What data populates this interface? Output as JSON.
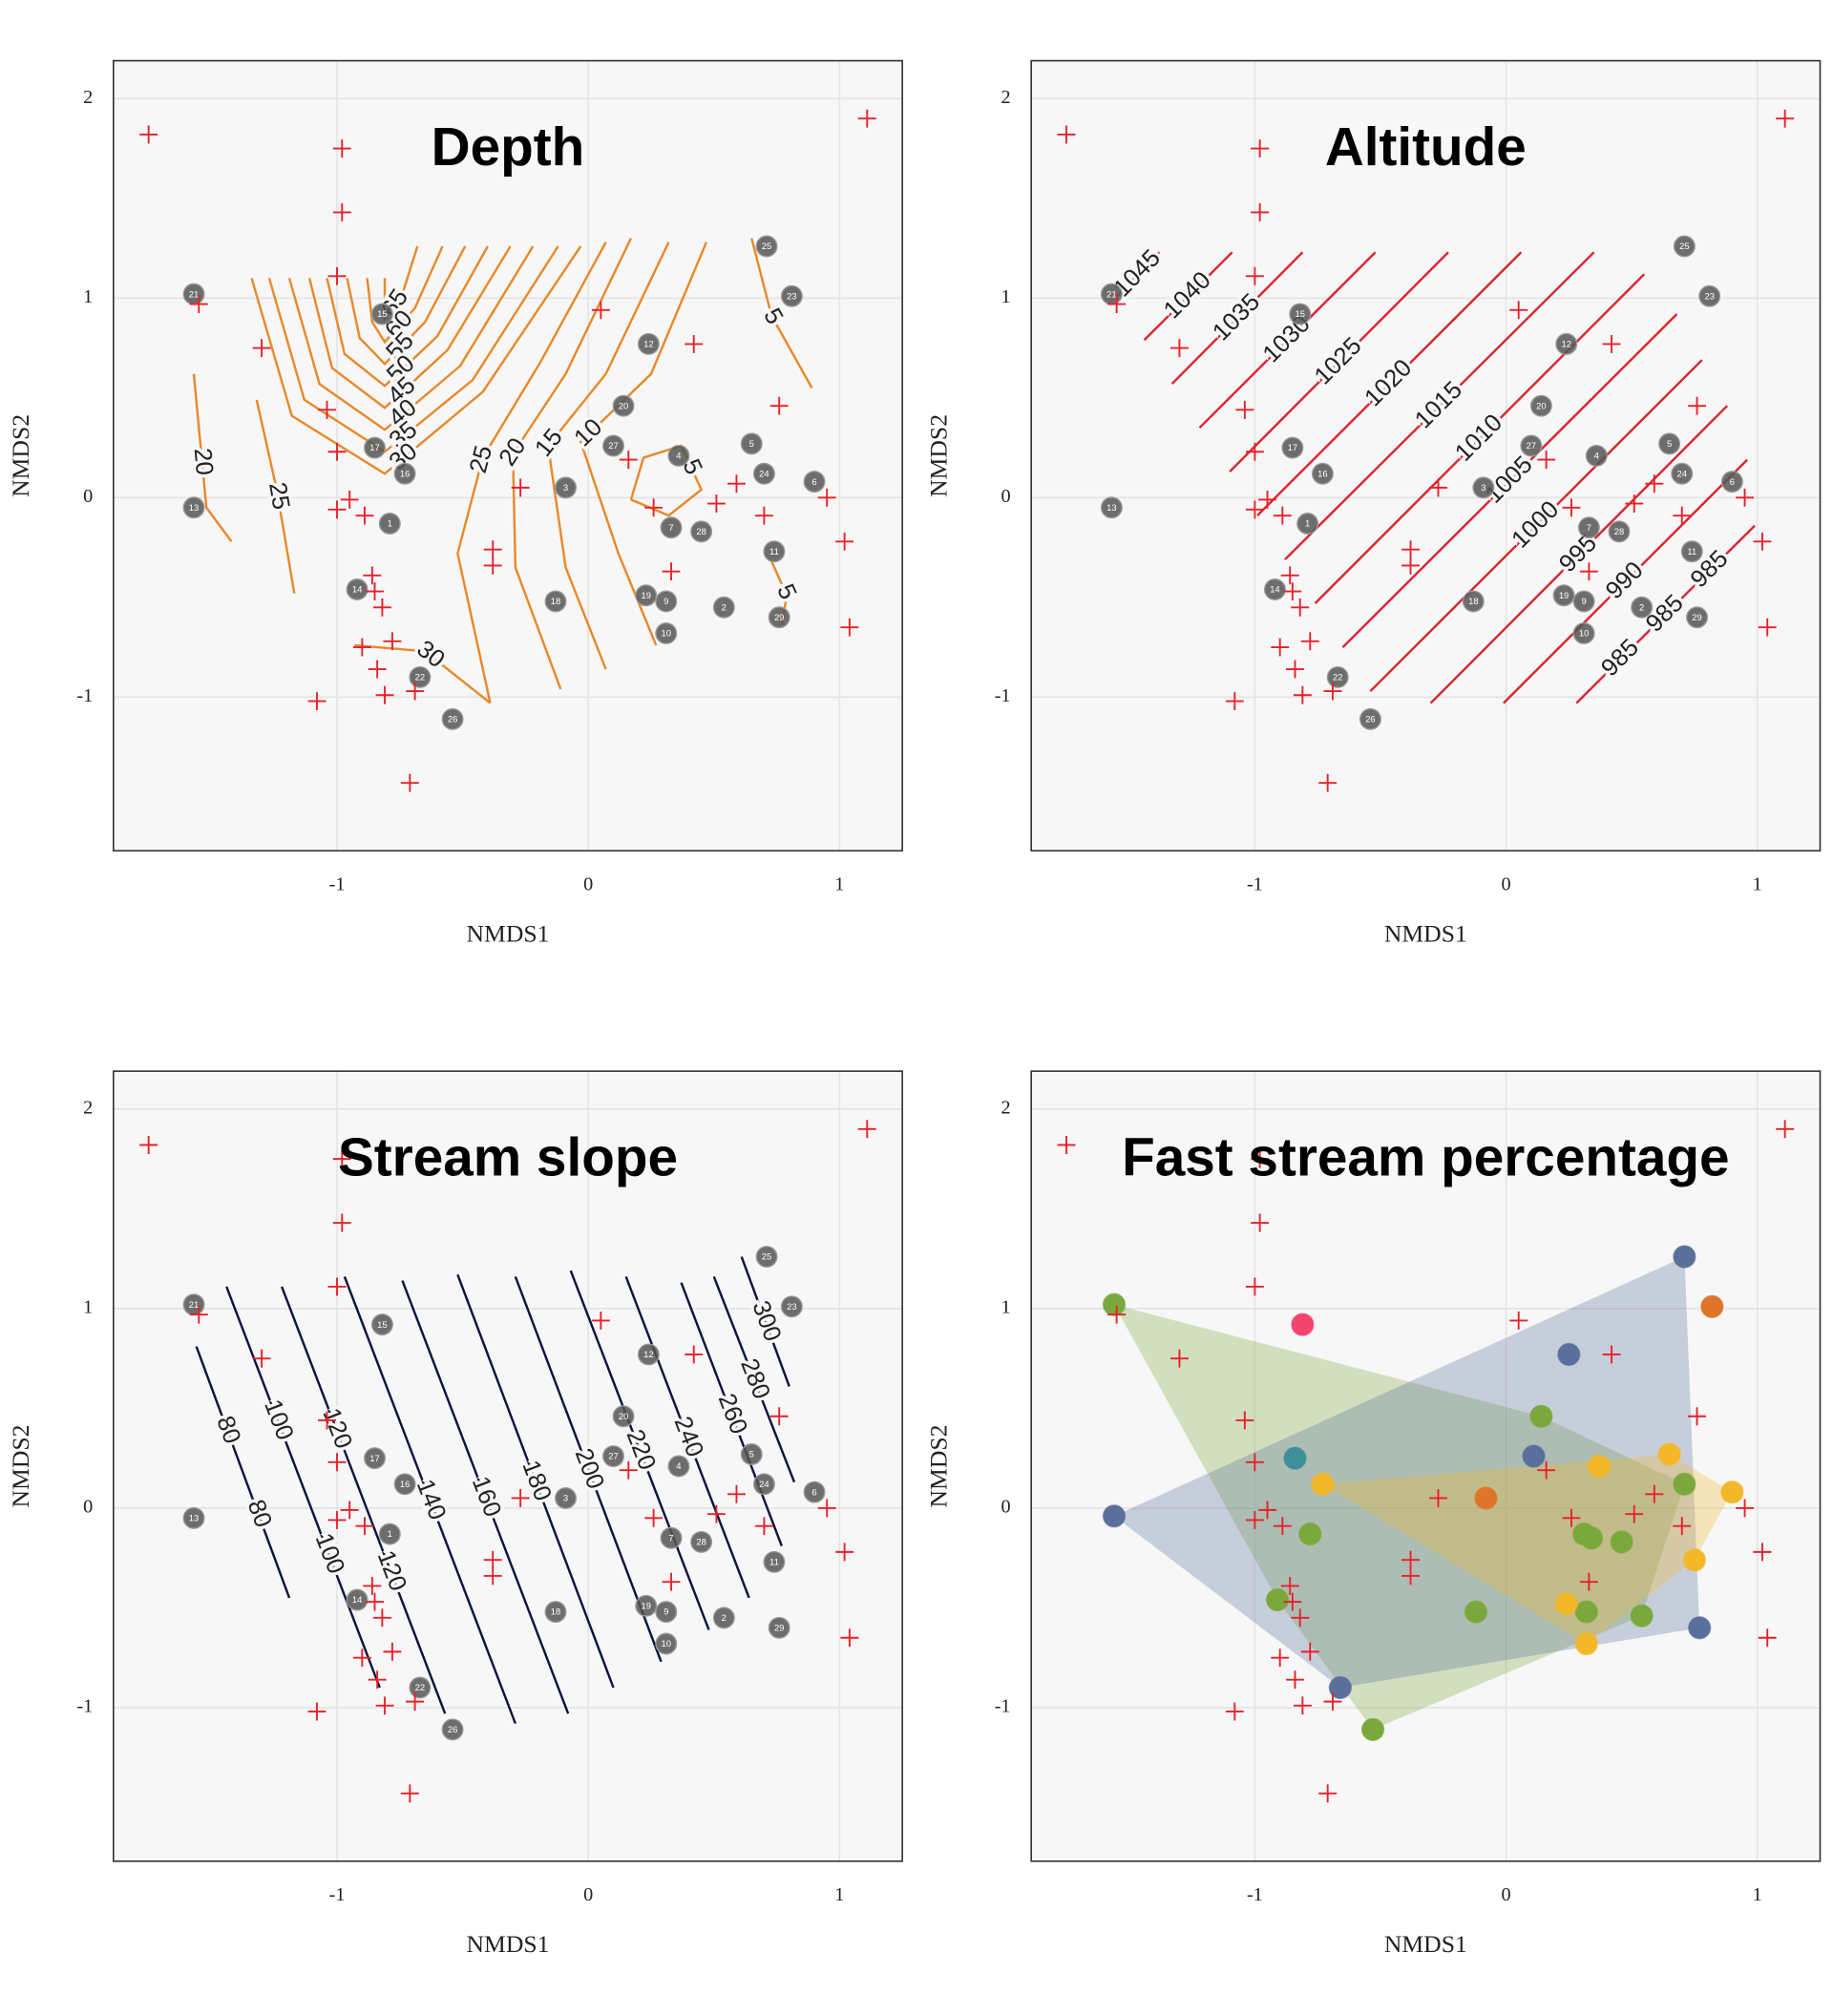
{
  "chart_data": [
    {
      "type": "scatter",
      "title": "Depth",
      "x_label": "NMDS1",
      "y_label": "NMDS2",
      "xlim": [
        -1.89,
        1.25
      ],
      "ylim": [
        -1.77,
        2.19
      ],
      "xticks": [
        -1,
        0,
        1
      ],
      "yticks": [
        -1,
        0,
        1,
        2
      ],
      "grid": true,
      "sites": {
        "color": "#555555",
        "labels": [
          "21",
          "13",
          "15",
          "12",
          "25",
          "23",
          "20",
          "27",
          "4",
          "5",
          "24",
          "6",
          "17",
          "16",
          "1",
          "3",
          "7",
          "28",
          "11",
          "14",
          "18",
          "19",
          "9",
          "2",
          "29",
          "10",
          "22",
          "26"
        ],
        "x": [
          -1.57,
          -1.57,
          -0.82,
          0.24,
          0.71,
          0.81,
          0.14,
          0.1,
          0.36,
          0.65,
          0.7,
          0.9,
          -0.85,
          -0.73,
          -0.79,
          -0.09,
          0.33,
          0.45,
          0.74,
          -0.92,
          -0.13,
          0.23,
          0.31,
          0.54,
          0.76,
          0.31,
          -0.67,
          -0.54
        ],
        "y": [
          1.02,
          -0.05,
          0.92,
          0.77,
          1.26,
          1.01,
          0.46,
          0.26,
          0.21,
          0.27,
          0.12,
          0.08,
          0.25,
          0.12,
          -0.13,
          0.05,
          -0.15,
          -0.17,
          -0.27,
          -0.46,
          -0.52,
          -0.49,
          -0.52,
          -0.55,
          -0.6,
          -0.68,
          -0.9,
          -1.11
        ]
      },
      "species": {
        "color": "#e8202a",
        "x": [
          -1.75,
          1.11,
          -0.98,
          -0.98,
          -1.0,
          -1.55,
          -1.3,
          0.05,
          0.42,
          0.76,
          -1.04,
          -1.0,
          0.16,
          -0.27,
          0.59,
          0.95,
          0.51,
          0.26,
          -0.95,
          -1.0,
          -0.89,
          0.7,
          1.02,
          -0.38,
          -0.38,
          0.33,
          -0.86,
          -0.85,
          -0.82,
          -0.78,
          -0.9,
          -0.84,
          -0.69,
          -0.81,
          -1.08,
          1.04,
          -0.71
        ],
        "y": [
          1.82,
          1.9,
          1.75,
          1.43,
          1.11,
          0.97,
          0.75,
          0.94,
          0.77,
          0.46,
          0.44,
          0.23,
          0.19,
          0.05,
          0.07,
          0,
          -0.03,
          -0.05,
          -0.01,
          -0.06,
          -0.09,
          -0.09,
          -0.22,
          -0.26,
          -0.34,
          -0.37,
          -0.39,
          -0.47,
          -0.55,
          -0.72,
          -0.75,
          -0.86,
          -0.97,
          -0.99,
          -1.02,
          -0.65,
          -1.43
        ]
      },
      "contours": {
        "color": "#e8892b",
        "lines": [
          {
            "labels": [
              65
            ],
            "x": [
              -0.81,
              -0.81,
              -0.81,
              -0.74,
              -0.68
            ],
            "y": [
              1.1,
              0.95,
              0.89,
              1.02,
              1.26
            ]
          },
          {
            "labels": [
              60
            ],
            "x": [
              -0.88,
              -0.86,
              -0.81,
              -0.69,
              -0.58
            ],
            "y": [
              1.1,
              0.88,
              0.78,
              0.95,
              1.26
            ]
          },
          {
            "labels": [
              55
            ],
            "x": [
              -0.96,
              -0.91,
              -0.81,
              -0.65,
              -0.49
            ],
            "y": [
              1.1,
              0.8,
              0.67,
              0.88,
              1.26
            ]
          },
          {
            "labels": [
              50
            ],
            "x": [
              -1.04,
              -0.97,
              -0.81,
              -0.6,
              -0.4
            ],
            "y": [
              1.1,
              0.72,
              0.56,
              0.81,
              1.26
            ]
          },
          {
            "labels": [
              45
            ],
            "x": [
              -1.11,
              -1.02,
              -0.81,
              -0.56,
              -0.31
            ],
            "y": [
              1.1,
              0.65,
              0.45,
              0.74,
              1.26
            ]
          },
          {
            "labels": [
              40
            ],
            "x": [
              -1.19,
              -1.07,
              -0.81,
              -0.51,
              -0.22
            ],
            "y": [
              1.1,
              0.57,
              0.34,
              0.66,
              1.26
            ]
          },
          {
            "labels": [
              35
            ],
            "x": [
              -1.27,
              -1.13,
              -0.81,
              -0.46,
              -0.12
            ],
            "y": [
              1.1,
              0.49,
              0.23,
              0.59,
              1.26
            ]
          },
          {
            "labels": [
              30,
              30
            ],
            "x": [
              -1.34,
              -1.18,
              -0.81,
              -0.42,
              -0.03,
              null,
              -0.93,
              -0.65,
              -0.39
            ],
            "y": [
              1.1,
              0.41,
              0.12,
              0.53,
              1.26,
              null,
              -0.74,
              -0.77,
              -1.03
            ]
          },
          {
            "labels": [
              25,
              25
            ],
            "x": [
              0.07,
              -0.19,
              -0.42,
              -0.52,
              -0.39,
              null,
              -1.32,
              -1.24,
              -1.17
            ],
            "y": [
              1.28,
              0.68,
              0.2,
              -0.28,
              -1.03,
              null,
              0.49,
              0.04,
              -0.48
            ]
          },
          {
            "labels": [
              20,
              20
            ],
            "x": [
              0.17,
              -0.09,
              -0.3,
              -0.29,
              -0.11,
              null,
              -1.57,
              -1.52,
              -1.42
            ],
            "y": [
              1.3,
              0.62,
              0.22,
              -0.35,
              -0.96,
              null,
              0.62,
              -0.05,
              -0.22
            ]
          },
          {
            "labels": [
              15
            ],
            "x": [
              0.32,
              0.07,
              -0.16,
              -0.09,
              0.07
            ],
            "y": [
              1.28,
              0.62,
              0.26,
              -0.35,
              -0.86
            ]
          },
          {
            "labels": [
              10
            ],
            "x": [
              0.47,
              0.25,
              -0.03,
              0.12,
              0.27
            ],
            "y": [
              1.28,
              0.62,
              0.28,
              -0.28,
              -0.74
            ]
          },
          {
            "labels": [
              5,
              5,
              5
            ],
            "x": [
              0.65,
              0.73,
              0.89,
              null,
              0.17,
              0.22,
              0.37,
              0.45,
              0.32,
              0.17,
              null,
              0.73,
              0.79,
              0.77
            ],
            "y": [
              1.3,
              0.91,
              0.55,
              null,
              -0.01,
              0.2,
              0.26,
              0.04,
              -0.09,
              -0.01,
              null,
              -0.32,
              -0.49,
              -0.64
            ]
          }
        ]
      }
    },
    {
      "type": "scatter",
      "title": "Altitude",
      "x_label": "NMDS1",
      "y_label": "NMDS2",
      "xlim": [
        -1.89,
        1.25
      ],
      "ylim": [
        -1.77,
        2.19
      ],
      "xticks": [
        -1,
        0,
        1
      ],
      "yticks": [
        -1,
        0,
        1,
        2
      ],
      "grid": true,
      "contours": {
        "color": "#d7282f",
        "lines": [
          {
            "labels": [
              1045
            ],
            "x": [
              -1.55,
              -1.38
            ],
            "y": [
              1.01,
              1.23
            ]
          },
          {
            "labels": [
              1040
            ],
            "x": [
              -1.44,
              -1.09
            ],
            "y": [
              0.79,
              1.23
            ]
          },
          {
            "labels": [
              1035
            ],
            "x": [
              -1.33,
              -0.81
            ],
            "y": [
              0.57,
              1.23
            ]
          },
          {
            "labels": [
              1030
            ],
            "x": [
              -1.22,
              -0.52
            ],
            "y": [
              0.35,
              1.23
            ]
          },
          {
            "labels": [
              1025
            ],
            "x": [
              -1.1,
              -0.23
            ],
            "y": [
              0.13,
              1.23
            ]
          },
          {
            "labels": [
              1020
            ],
            "x": [
              -0.99,
              0.06
            ],
            "y": [
              -0.09,
              1.23
            ]
          },
          {
            "labels": [
              1015
            ],
            "x": [
              -0.88,
              0.35
            ],
            "y": [
              -0.31,
              1.23
            ]
          },
          {
            "labels": [
              1010
            ],
            "x": [
              -0.76,
              0.55
            ],
            "y": [
              -0.53,
              1.12
            ]
          },
          {
            "labels": [
              1005
            ],
            "x": [
              -0.65,
              0.68
            ],
            "y": [
              -0.75,
              0.92
            ]
          },
          {
            "labels": [
              1000
            ],
            "x": [
              -0.54,
              0.78
            ],
            "y": [
              -0.97,
              0.69
            ]
          },
          {
            "labels": [
              995
            ],
            "x": [
              -0.3,
              0.88
            ],
            "y": [
              -1.03,
              0.46
            ]
          },
          {
            "labels": [
              990
            ],
            "x": [
              -0.01,
              0.96
            ],
            "y": [
              -1.03,
              0.19
            ]
          },
          {
            "labels": [
              985,
              985,
              985
            ],
            "x": [
              0.28,
              0.99
            ],
            "y": [
              -1.03,
              -0.14
            ]
          }
        ]
      }
    },
    {
      "type": "scatter",
      "title": "Stream slope",
      "x_label": "NMDS1",
      "y_label": "NMDS2",
      "xlim": [
        -1.89,
        1.25
      ],
      "ylim": [
        -1.77,
        2.19
      ],
      "xticks": [
        -1,
        0,
        1
      ],
      "yticks": [
        -1,
        0,
        1,
        2
      ],
      "grid": true,
      "contours": {
        "color": "#0d1440",
        "lines": [
          {
            "labels": [
              80,
              80
            ],
            "x": [
              -1.56,
              -1.19
            ],
            "y": [
              0.81,
              -0.45
            ]
          },
          {
            "labels": [
              100,
              100
            ],
            "x": [
              -1.44,
              -0.83
            ],
            "y": [
              1.11,
              -0.9
            ]
          },
          {
            "labels": [
              120,
              120
            ],
            "x": [
              -1.22,
              -0.57
            ],
            "y": [
              1.11,
              -1.03
            ]
          },
          {
            "labels": [
              140
            ],
            "x": [
              -0.97,
              -0.29
            ],
            "y": [
              1.16,
              -1.08
            ]
          },
          {
            "labels": [
              160
            ],
            "x": [
              -0.74,
              -0.08
            ],
            "y": [
              1.14,
              -1.03
            ]
          },
          {
            "labels": [
              180
            ],
            "x": [
              -0.52,
              0.1
            ],
            "y": [
              1.17,
              -0.9
            ]
          },
          {
            "labels": [
              200
            ],
            "x": [
              -0.29,
              0.29
            ],
            "y": [
              1.16,
              -0.77
            ]
          },
          {
            "labels": [
              220
            ],
            "x": [
              -0.07,
              0.48
            ],
            "y": [
              1.19,
              -0.61
            ]
          },
          {
            "labels": [
              240
            ],
            "x": [
              0.15,
              0.64
            ],
            "y": [
              1.16,
              -0.45
            ]
          },
          {
            "labels": [
              260
            ],
            "x": [
              0.37,
              0.77
            ],
            "y": [
              1.13,
              -0.19
            ]
          },
          {
            "labels": [
              280
            ],
            "x": [
              0.5,
              0.82
            ],
            "y": [
              1.16,
              0.13
            ]
          },
          {
            "labels": [
              300
            ],
            "x": [
              0.61,
              0.8
            ],
            "y": [
              1.26,
              0.61
            ]
          }
        ]
      }
    },
    {
      "type": "scatter",
      "title": "Fast stream percentage",
      "x_label": "NMDS1",
      "y_label": "NMDS2",
      "xlim": [
        -1.89,
        1.25
      ],
      "ylim": [
        -1.77,
        2.19
      ],
      "xticks": [
        -1,
        0,
        1
      ],
      "yticks": [
        -1,
        0,
        1,
        2
      ],
      "grid": true,
      "hull": true,
      "groups": [
        {
          "color": "#7ba83c",
          "x": [
            -1.56,
            0.14,
            0.71,
            -0.78,
            0.31,
            0.34,
            0.46,
            -0.91,
            -0.12,
            0.32,
            0.54,
            -0.53
          ],
          "y": [
            1.02,
            0.46,
            0.12,
            -0.13,
            -0.13,
            -0.15,
            -0.17,
            -0.46,
            -0.52,
            -0.52,
            -0.54,
            -1.11
          ]
        },
        {
          "color": "#5b6f9c",
          "x": [
            -1.56,
            0.71,
            0.25,
            0.11,
            0.77,
            -0.66
          ],
          "y": [
            -0.04,
            1.26,
            0.77,
            0.26,
            -0.6,
            -0.9
          ]
        },
        {
          "color": "#f3b82a",
          "x": [
            -0.73,
            0.37,
            0.65,
            0.9,
            0.75,
            0.24,
            0.32
          ],
          "y": [
            0.12,
            0.21,
            0.27,
            0.08,
            -0.26,
            -0.48,
            -0.68
          ]
        },
        {
          "color": "#df742a",
          "x": [
            0.82,
            -0.08
          ],
          "y": [
            1.01,
            0.05
          ]
        },
        {
          "color": "#f2456e",
          "x": [
            -0.81
          ],
          "y": [
            0.92
          ]
        },
        {
          "color": "#3f8f99",
          "x": [
            -0.84
          ],
          "y": [
            0.25
          ]
        }
      ]
    }
  ]
}
